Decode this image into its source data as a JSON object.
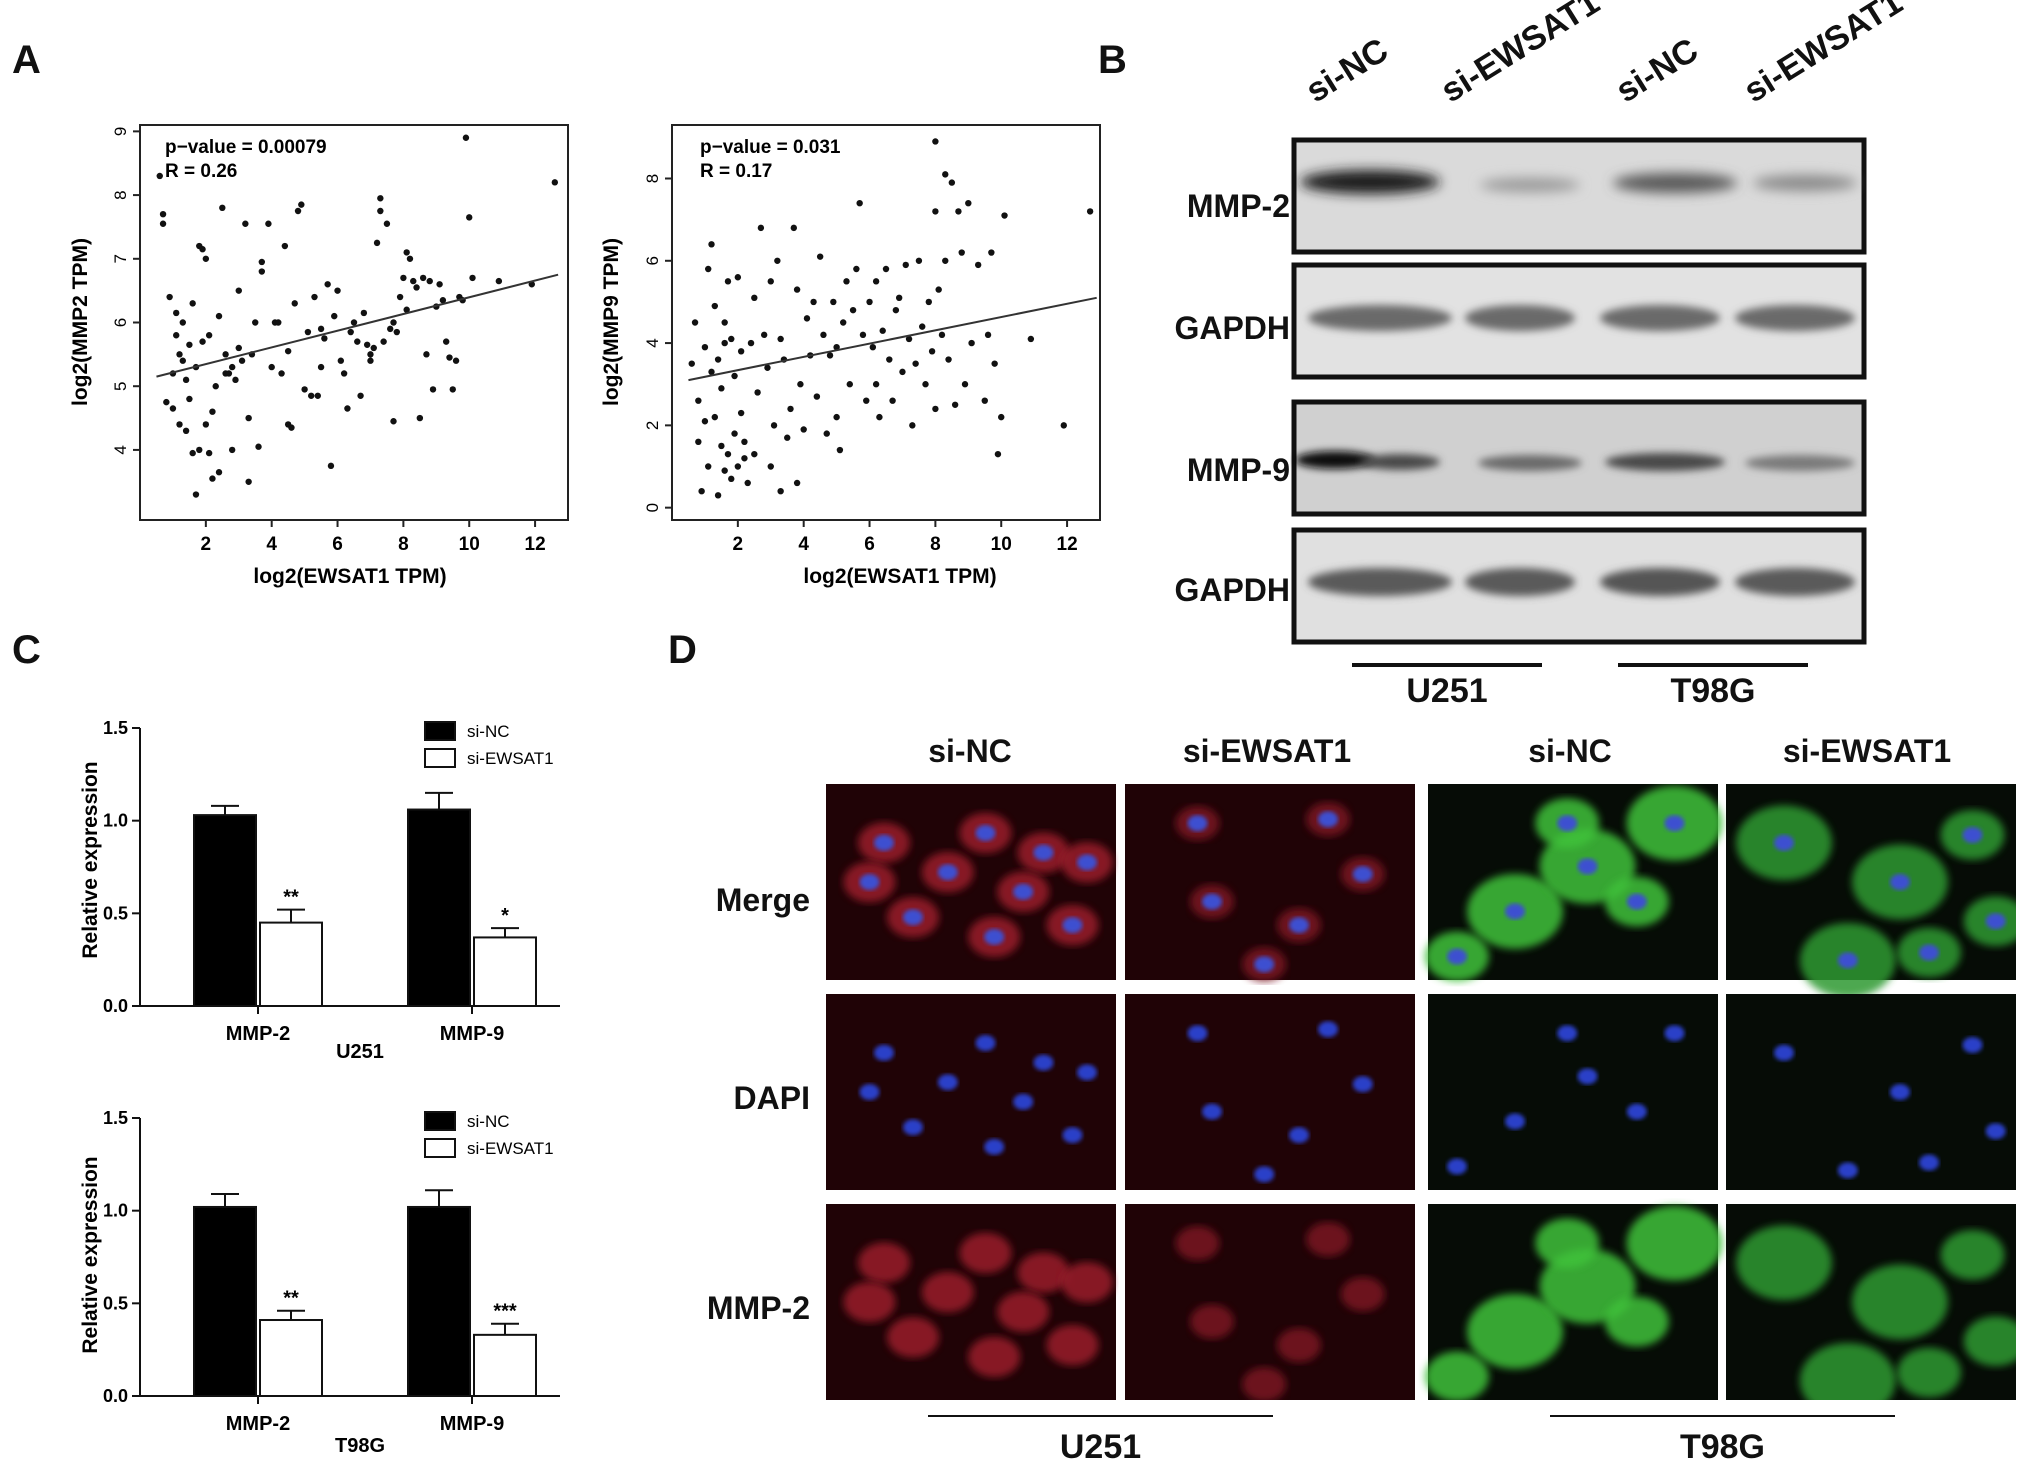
{
  "panels": {
    "A": "A",
    "B": "B",
    "C": "C",
    "D": "D"
  },
  "panelA": {
    "charts": [
      {
        "type": "scatter",
        "xlabel": "log2(EWSAT1 TPM)",
        "ylabel": "log2(MMP2 TPM)",
        "annot_p": "p−value = 0.00079",
        "annot_r": "R = 0.26",
        "xlim": [
          0,
          13
        ],
        "ylim": [
          2.9,
          9.1
        ],
        "xticks": [
          "2",
          "4",
          "6",
          "8",
          "10",
          "12"
        ],
        "yticks": [
          "4",
          "5",
          "6",
          "7",
          "8",
          "9"
        ],
        "fit": {
          "x0": 0.5,
          "y0": 5.15,
          "x1": 12.7,
          "y1": 6.75
        },
        "points": [
          [
            0.6,
            8.3
          ],
          [
            0.7,
            7.7
          ],
          [
            0.7,
            7.55
          ],
          [
            0.8,
            4.75
          ],
          [
            0.9,
            6.4
          ],
          [
            1.0,
            5.2
          ],
          [
            1.0,
            4.65
          ],
          [
            1.1,
            6.15
          ],
          [
            1.1,
            5.8
          ],
          [
            1.2,
            4.4
          ],
          [
            1.2,
            5.5
          ],
          [
            1.3,
            6.0
          ],
          [
            1.3,
            5.4
          ],
          [
            1.4,
            4.3
          ],
          [
            1.4,
            5.1
          ],
          [
            1.5,
            5.65
          ],
          [
            1.5,
            4.8
          ],
          [
            1.6,
            3.95
          ],
          [
            1.6,
            6.3
          ],
          [
            1.7,
            3.3
          ],
          [
            1.7,
            5.3
          ],
          [
            1.8,
            7.2
          ],
          [
            1.8,
            4.0
          ],
          [
            1.9,
            7.15
          ],
          [
            1.9,
            5.7
          ],
          [
            2.0,
            7.0
          ],
          [
            2.0,
            4.4
          ],
          [
            2.1,
            3.95
          ],
          [
            2.1,
            5.8
          ],
          [
            2.2,
            3.55
          ],
          [
            2.2,
            4.6
          ],
          [
            2.3,
            5.0
          ],
          [
            2.4,
            3.65
          ],
          [
            2.4,
            6.1
          ],
          [
            2.5,
            7.8
          ],
          [
            2.6,
            5.5
          ],
          [
            2.6,
            5.2
          ],
          [
            2.7,
            5.2
          ],
          [
            2.8,
            4.0
          ],
          [
            2.8,
            5.3
          ],
          [
            2.9,
            5.1
          ],
          [
            3.0,
            6.5
          ],
          [
            3.0,
            5.6
          ],
          [
            3.1,
            5.4
          ],
          [
            3.2,
            7.55
          ],
          [
            3.3,
            3.5
          ],
          [
            3.3,
            4.5
          ],
          [
            3.4,
            5.5
          ],
          [
            3.5,
            6.0
          ],
          [
            3.6,
            4.05
          ],
          [
            3.7,
            6.95
          ],
          [
            3.7,
            6.8
          ],
          [
            3.9,
            7.55
          ],
          [
            4.0,
            5.3
          ],
          [
            4.1,
            6.0
          ],
          [
            4.2,
            6.0
          ],
          [
            4.3,
            5.2
          ],
          [
            4.4,
            7.2
          ],
          [
            4.5,
            5.55
          ],
          [
            4.5,
            4.4
          ],
          [
            4.6,
            4.35
          ],
          [
            4.7,
            6.3
          ],
          [
            4.8,
            7.75
          ],
          [
            4.9,
            7.85
          ],
          [
            5.0,
            4.95
          ],
          [
            5.1,
            5.85
          ],
          [
            5.2,
            4.85
          ],
          [
            5.3,
            6.4
          ],
          [
            5.4,
            4.85
          ],
          [
            5.5,
            5.3
          ],
          [
            5.5,
            5.9
          ],
          [
            5.6,
            5.75
          ],
          [
            5.7,
            6.6
          ],
          [
            5.8,
            3.75
          ],
          [
            5.9,
            6.1
          ],
          [
            6.0,
            6.5
          ],
          [
            6.1,
            5.4
          ],
          [
            6.2,
            5.2
          ],
          [
            6.3,
            4.65
          ],
          [
            6.4,
            5.85
          ],
          [
            6.5,
            6.0
          ],
          [
            6.6,
            5.7
          ],
          [
            6.7,
            4.85
          ],
          [
            6.8,
            6.15
          ],
          [
            6.9,
            5.65
          ],
          [
            7.0,
            5.5
          ],
          [
            7.0,
            5.4
          ],
          [
            7.1,
            5.6
          ],
          [
            7.2,
            7.25
          ],
          [
            7.3,
            7.75
          ],
          [
            7.3,
            7.95
          ],
          [
            7.4,
            5.7
          ],
          [
            7.5,
            7.55
          ],
          [
            7.6,
            5.9
          ],
          [
            7.7,
            6.0
          ],
          [
            7.7,
            4.45
          ],
          [
            7.8,
            5.85
          ],
          [
            7.9,
            6.4
          ],
          [
            8.0,
            6.7
          ],
          [
            8.1,
            6.2
          ],
          [
            8.1,
            7.1
          ],
          [
            8.2,
            7.0
          ],
          [
            8.3,
            6.65
          ],
          [
            8.4,
            6.55
          ],
          [
            8.5,
            4.5
          ],
          [
            8.6,
            6.7
          ],
          [
            8.7,
            5.5
          ],
          [
            8.8,
            6.65
          ],
          [
            8.9,
            4.95
          ],
          [
            9.0,
            6.25
          ],
          [
            9.1,
            6.6
          ],
          [
            9.2,
            6.35
          ],
          [
            9.3,
            5.7
          ],
          [
            9.4,
            5.45
          ],
          [
            9.5,
            4.95
          ],
          [
            9.6,
            5.4
          ],
          [
            9.7,
            6.4
          ],
          [
            9.8,
            6.35
          ],
          [
            9.9,
            8.9
          ],
          [
            10.0,
            7.65
          ],
          [
            10.1,
            6.7
          ],
          [
            10.9,
            6.65
          ],
          [
            11.9,
            6.6
          ],
          [
            12.6,
            8.2
          ]
        ]
      },
      {
        "type": "scatter",
        "xlabel": "log2(EWSAT1 TPM)",
        "ylabel": "log2(MMP9 TPM)",
        "annot_p": "p−value = 0.031",
        "annot_r": "R = 0.17",
        "xlim": [
          0,
          13
        ],
        "ylim": [
          -0.3,
          9.3
        ],
        "xticks": [
          "2",
          "4",
          "6",
          "8",
          "10",
          "12"
        ],
        "yticks": [
          "0",
          "2",
          "4",
          "6",
          "8"
        ],
        "fit": {
          "x0": 0.5,
          "y0": 3.1,
          "x1": 12.9,
          "y1": 5.1
        },
        "points": [
          [
            0.6,
            3.5
          ],
          [
            0.7,
            4.5
          ],
          [
            0.8,
            1.6
          ],
          [
            0.8,
            2.6
          ],
          [
            0.9,
            0.4
          ],
          [
            1.0,
            3.9
          ],
          [
            1.0,
            2.1
          ],
          [
            1.1,
            5.8
          ],
          [
            1.1,
            1.0
          ],
          [
            1.2,
            6.4
          ],
          [
            1.2,
            3.3
          ],
          [
            1.3,
            4.9
          ],
          [
            1.3,
            2.2
          ],
          [
            1.4,
            0.3
          ],
          [
            1.4,
            3.6
          ],
          [
            1.5,
            1.5
          ],
          [
            1.5,
            2.9
          ],
          [
            1.6,
            4.5
          ],
          [
            1.6,
            0.9
          ],
          [
            1.7,
            5.5
          ],
          [
            1.7,
            1.3
          ],
          [
            1.8,
            4.1
          ],
          [
            1.8,
            0.7
          ],
          [
            1.9,
            3.2
          ],
          [
            1.9,
            1.8
          ],
          [
            2.0,
            5.6
          ],
          [
            2.0,
            1.0
          ],
          [
            2.1,
            2.3
          ],
          [
            2.1,
            3.8
          ],
          [
            2.2,
            1.6
          ],
          [
            2.3,
            0.6
          ],
          [
            2.4,
            4.0
          ],
          [
            2.5,
            5.1
          ],
          [
            2.5,
            1.3
          ],
          [
            2.6,
            2.8
          ],
          [
            2.7,
            6.8
          ],
          [
            2.8,
            4.2
          ],
          [
            2.9,
            3.4
          ],
          [
            3.0,
            5.5
          ],
          [
            3.0,
            1.0
          ],
          [
            3.1,
            2.0
          ],
          [
            3.2,
            6.0
          ],
          [
            3.3,
            4.1
          ],
          [
            3.3,
            0.4
          ],
          [
            3.4,
            3.6
          ],
          [
            3.5,
            1.7
          ],
          [
            3.6,
            2.4
          ],
          [
            3.7,
            6.8
          ],
          [
            3.8,
            5.3
          ],
          [
            3.9,
            3.0
          ],
          [
            4.0,
            1.9
          ],
          [
            4.1,
            4.6
          ],
          [
            4.2,
            3.7
          ],
          [
            4.3,
            5.0
          ],
          [
            4.4,
            2.7
          ],
          [
            4.5,
            6.1
          ],
          [
            4.6,
            4.2
          ],
          [
            4.7,
            1.8
          ],
          [
            4.8,
            3.7
          ],
          [
            4.9,
            5.0
          ],
          [
            5.0,
            2.2
          ],
          [
            5.0,
            3.9
          ],
          [
            5.1,
            1.4
          ],
          [
            5.2,
            4.5
          ],
          [
            5.3,
            5.5
          ],
          [
            5.4,
            3.0
          ],
          [
            5.5,
            4.8
          ],
          [
            5.6,
            5.8
          ],
          [
            5.7,
            7.4
          ],
          [
            5.8,
            4.2
          ],
          [
            5.9,
            2.6
          ],
          [
            6.0,
            5.0
          ],
          [
            6.1,
            3.9
          ],
          [
            6.2,
            5.5
          ],
          [
            6.3,
            2.2
          ],
          [
            6.4,
            4.3
          ],
          [
            6.5,
            5.8
          ],
          [
            6.6,
            3.6
          ],
          [
            6.7,
            2.6
          ],
          [
            6.8,
            4.8
          ],
          [
            6.9,
            5.1
          ],
          [
            7.0,
            3.3
          ],
          [
            7.1,
            5.9
          ],
          [
            7.2,
            4.1
          ],
          [
            7.3,
            2.0
          ],
          [
            7.4,
            3.5
          ],
          [
            7.5,
            6.0
          ],
          [
            7.6,
            4.4
          ],
          [
            7.7,
            3.0
          ],
          [
            7.8,
            5.0
          ],
          [
            7.9,
            3.8
          ],
          [
            8.0,
            7.2
          ],
          [
            8.0,
            2.4
          ],
          [
            8.1,
            5.3
          ],
          [
            8.2,
            4.2
          ],
          [
            8.3,
            8.1
          ],
          [
            8.3,
            6.0
          ],
          [
            8.4,
            3.6
          ],
          [
            8.5,
            7.9
          ],
          [
            8.6,
            2.5
          ],
          [
            8.7,
            7.2
          ],
          [
            8.8,
            6.2
          ],
          [
            8.9,
            3.0
          ],
          [
            9.0,
            7.4
          ],
          [
            9.1,
            4.0
          ],
          [
            9.3,
            5.9
          ],
          [
            9.5,
            2.6
          ],
          [
            9.6,
            4.2
          ],
          [
            9.7,
            6.2
          ],
          [
            9.8,
            3.5
          ],
          [
            9.9,
            1.3
          ],
          [
            10.0,
            2.2
          ],
          [
            10.1,
            7.1
          ],
          [
            10.9,
            4.1
          ],
          [
            11.9,
            2.0
          ],
          [
            12.7,
            7.2
          ],
          [
            8.0,
            8.9
          ],
          [
            2.2,
            1.2
          ],
          [
            1.6,
            4.0
          ],
          [
            3.8,
            0.6
          ],
          [
            6.2,
            3.0
          ]
        ]
      }
    ]
  },
  "panelB": {
    "lanes": [
      "si-NC",
      "si-EWSAT1",
      "si-NC",
      "si-EWSAT1"
    ],
    "rows": [
      "MMP-2",
      "GAPDH",
      "MMP-9",
      "GAPDH"
    ],
    "groups": [
      "U251",
      "T98G"
    ]
  },
  "panelC": {
    "charts": [
      {
        "type": "bar",
        "categories": [
          "MMP-2",
          "MMP-9"
        ],
        "group_label": "U251",
        "ylabel": "Relative expression",
        "ylim": [
          0,
          1.5
        ],
        "yticks": [
          "0.0",
          "0.5",
          "1.0",
          "1.5"
        ],
        "series": [
          {
            "name": "si-NC",
            "values": [
              1.03,
              1.06
            ],
            "errors": [
              0.05,
              0.09
            ],
            "color": "#000000"
          },
          {
            "name": "si-EWSAT1",
            "values": [
              0.45,
              0.37
            ],
            "errors": [
              0.07,
              0.05
            ],
            "color": "#ffffff"
          }
        ],
        "sig": [
          "**",
          "*"
        ]
      },
      {
        "type": "bar",
        "categories": [
          "MMP-2",
          "MMP-9"
        ],
        "group_label": "T98G",
        "ylabel": "Relative expression",
        "ylim": [
          0,
          1.5
        ],
        "yticks": [
          "0.0",
          "0.5",
          "1.0",
          "1.5"
        ],
        "series": [
          {
            "name": "si-NC",
            "values": [
              1.02,
              1.02
            ],
            "errors": [
              0.07,
              0.09
            ],
            "color": "#000000"
          },
          {
            "name": "si-EWSAT1",
            "values": [
              0.41,
              0.33
            ],
            "errors": [
              0.05,
              0.06
            ],
            "color": "#ffffff"
          }
        ],
        "sig": [
          "**",
          "***"
        ]
      }
    ]
  },
  "panelD": {
    "cols": [
      "si-NC",
      "si-EWSAT1",
      "si-NC",
      "si-EWSAT1"
    ],
    "rows": [
      "Merge",
      "DAPI",
      "MMP-2"
    ],
    "groups": [
      "U251",
      "T98G"
    ]
  }
}
